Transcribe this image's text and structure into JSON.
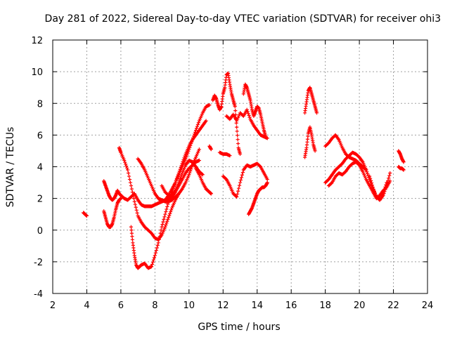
{
  "chart_data": {
    "type": "scatter",
    "title": "Day 281 of 2022, Sidereal Day-to-day VTEC variation (SDTVAR) for receiver ohi3",
    "xlabel": "GPS time / hours",
    "ylabel": "SDTVAR / TECUs",
    "xlim": [
      2,
      24
    ],
    "ylim": [
      -4,
      12
    ],
    "xticks": [
      2,
      4,
      6,
      8,
      10,
      12,
      14,
      16,
      18,
      20,
      22,
      24
    ],
    "yticks": [
      -4,
      -2,
      0,
      2,
      4,
      6,
      8,
      10,
      12
    ],
    "grid": true,
    "marker": "+",
    "color": "#ff0000",
    "series": [
      {
        "name": "s1",
        "x": [
          3.8,
          3.9,
          4.0
        ],
        "y": [
          1.1,
          1.0,
          0.9
        ]
      },
      {
        "name": "s2",
        "x": [
          5.0,
          5.1,
          5.2,
          5.3,
          5.4,
          5.5,
          5.6,
          5.7,
          5.8,
          5.9,
          6.0,
          6.2,
          6.4,
          6.6,
          6.8,
          7.0,
          7.2,
          7.4,
          7.6,
          7.8,
          8.0,
          8.2,
          8.4,
          8.6,
          8.8,
          9.0,
          9.2,
          9.4,
          9.6,
          9.8,
          10.0,
          10.2,
          10.4,
          10.6
        ],
        "y": [
          3.1,
          2.8,
          2.5,
          2.2,
          2.0,
          1.9,
          2.0,
          2.2,
          2.5,
          2.3,
          2.2,
          2.0,
          1.9,
          2.1,
          2.3,
          1.9,
          1.6,
          1.5,
          1.5,
          1.5,
          1.6,
          1.7,
          1.8,
          1.9,
          2.0,
          2.1,
          2.4,
          2.8,
          3.2,
          3.6,
          3.9,
          4.1,
          4.3,
          4.4
        ]
      },
      {
        "name": "s3",
        "x": [
          5.0,
          5.1,
          5.2,
          5.3,
          5.4,
          5.5,
          5.6,
          5.7,
          5.8,
          5.9,
          6.0
        ],
        "y": [
          1.2,
          0.8,
          0.4,
          0.2,
          0.2,
          0.4,
          0.8,
          1.3,
          1.7,
          1.9,
          2.0
        ]
      },
      {
        "name": "s4",
        "x": [
          5.9,
          6.0,
          6.2,
          6.4,
          6.6,
          6.8,
          7.0,
          7.2,
          7.4,
          7.6,
          7.8,
          8.0,
          8.2,
          8.4,
          8.6,
          8.8,
          9.0,
          9.2,
          9.4
        ],
        "y": [
          5.2,
          4.9,
          4.4,
          3.8,
          2.8,
          1.8,
          0.9,
          0.5,
          0.2,
          0.0,
          -0.2,
          -0.5,
          -0.6,
          -0.3,
          0.2,
          0.8,
          1.4,
          1.9,
          2.3
        ]
      },
      {
        "name": "s5",
        "x": [
          6.6,
          6.7,
          6.8,
          6.9,
          7.0,
          7.1,
          7.2,
          7.4,
          7.6,
          7.8,
          8.0,
          8.2,
          8.4,
          8.6,
          8.8,
          9.0,
          9.2,
          9.4,
          9.6,
          9.8,
          10.0,
          10.2,
          10.4,
          10.6,
          10.8,
          11.0
        ],
        "y": [
          0.2,
          -0.8,
          -1.6,
          -2.2,
          -2.4,
          -2.3,
          -2.2,
          -2.1,
          -2.4,
          -2.3,
          -1.6,
          -0.8,
          0.2,
          1.0,
          1.8,
          2.4,
          3.0,
          3.6,
          4.2,
          4.8,
          5.3,
          5.7,
          6.0,
          6.3,
          6.6,
          6.9
        ]
      },
      {
        "name": "s6",
        "x": [
          7.0,
          7.2,
          7.4,
          7.6,
          7.8,
          8.0,
          8.2,
          8.4,
          8.6,
          8.8,
          9.0,
          9.2,
          9.4,
          9.6,
          9.8,
          10.0,
          10.2,
          10.4,
          10.6,
          10.8,
          11.0,
          11.2
        ],
        "y": [
          4.5,
          4.2,
          3.8,
          3.3,
          2.8,
          2.3,
          2.0,
          1.8,
          1.9,
          2.2,
          2.6,
          3.0,
          3.5,
          4.0,
          4.5,
          5.1,
          5.7,
          6.3,
          6.9,
          7.4,
          7.8,
          7.9
        ]
      },
      {
        "name": "s7",
        "x": [
          8.2,
          8.4,
          8.6,
          8.8,
          9.0,
          9.2,
          9.4,
          9.6,
          9.8,
          10.0,
          10.2,
          10.4,
          10.6
        ],
        "y": [
          2.0,
          1.9,
          1.8,
          1.8,
          1.9,
          2.1,
          2.3,
          2.6,
          3.0,
          3.5,
          4.1,
          4.6,
          5.1
        ]
      },
      {
        "name": "s8",
        "x": [
          8.4,
          8.6,
          8.8,
          9.0,
          9.2,
          9.4,
          9.6,
          9.8,
          10.0,
          10.2,
          10.4,
          10.6,
          10.8
        ],
        "y": [
          2.8,
          2.4,
          2.2,
          2.2,
          2.5,
          3.0,
          3.6,
          4.1,
          4.4,
          4.3,
          4.0,
          3.7,
          3.5
        ]
      },
      {
        "name": "s9",
        "x": [
          10.4,
          10.6,
          10.8,
          11.0,
          11.2
        ],
        "y": [
          3.9,
          3.5,
          3.0,
          2.6,
          2.4
        ]
      },
      {
        "name": "s10",
        "x": [
          11.0,
          11.2,
          11.3
        ],
        "y": [
          2.6,
          2.4,
          2.3
        ]
      },
      {
        "name": "s11",
        "x": [
          11.2,
          11.3
        ],
        "y": [
          5.3,
          5.1
        ]
      },
      {
        "name": "s12",
        "x": [
          11.4,
          11.5,
          11.6,
          11.7,
          11.8,
          11.9,
          12.0,
          12.1,
          12.2,
          12.3,
          12.4,
          12.5,
          12.6,
          12.7,
          12.8,
          12.9,
          13.0
        ],
        "y": [
          8.2,
          8.5,
          8.3,
          7.9,
          7.6,
          7.8,
          8.6,
          9.0,
          9.8,
          9.9,
          9.2,
          8.6,
          8.2,
          7.8,
          6.5,
          5.2,
          4.8
        ]
      },
      {
        "name": "s13",
        "x": [
          11.8,
          12.0,
          12.2,
          12.4
        ],
        "y": [
          4.9,
          4.8,
          4.8,
          4.7
        ]
      },
      {
        "name": "s14",
        "x": [
          12.0,
          12.2,
          12.4,
          12.6,
          12.8,
          13.0,
          13.2,
          13.4,
          13.6,
          13.8,
          14.0,
          14.2,
          14.4,
          14.6
        ],
        "y": [
          3.4,
          3.2,
          2.8,
          2.3,
          2.1,
          3.0,
          3.8,
          4.1,
          4.0,
          4.1,
          4.2,
          4.0,
          3.6,
          3.2
        ]
      },
      {
        "name": "s15",
        "x": [
          12.2,
          12.4,
          12.6,
          12.8,
          13.0,
          13.2,
          13.4,
          13.6,
          13.8,
          14.0,
          14.2,
          14.4,
          14.6
        ],
        "y": [
          7.2,
          7.0,
          7.3,
          6.9,
          7.4,
          7.2,
          7.6,
          7.0,
          6.6,
          6.3,
          6.0,
          5.9,
          5.8
        ]
      },
      {
        "name": "s16",
        "x": [
          13.2,
          13.3,
          13.4,
          13.5,
          13.6,
          13.7,
          13.8,
          13.9,
          14.0,
          14.1,
          14.2,
          14.3,
          14.4,
          14.5
        ],
        "y": [
          8.6,
          9.2,
          9.0,
          8.6,
          8.2,
          7.6,
          7.2,
          7.5,
          7.8,
          7.7,
          7.3,
          6.8,
          6.3,
          5.9
        ]
      },
      {
        "name": "s17",
        "x": [
          13.5,
          13.6,
          13.7,
          13.8,
          13.9,
          14.0,
          14.1,
          14.2,
          14.3,
          14.4,
          14.5,
          14.6
        ],
        "y": [
          1.0,
          1.2,
          1.4,
          1.7,
          2.0,
          2.3,
          2.5,
          2.6,
          2.7,
          2.7,
          2.8,
          3.0
        ]
      },
      {
        "name": "s18",
        "x": [
          16.8,
          16.9,
          17.0,
          17.1,
          17.2,
          17.3,
          17.4,
          17.5
        ],
        "y": [
          7.4,
          8.1,
          8.8,
          9.0,
          8.6,
          8.2,
          7.8,
          7.4
        ]
      },
      {
        "name": "s19",
        "x": [
          16.8,
          16.9,
          17.0,
          17.1,
          17.2,
          17.3,
          17.4
        ],
        "y": [
          4.6,
          5.2,
          6.1,
          6.5,
          6.0,
          5.4,
          5.0
        ]
      },
      {
        "name": "s20",
        "x": [
          18.0,
          18.2,
          18.4,
          18.6,
          18.8,
          19.0,
          19.2,
          19.4,
          19.6,
          19.8,
          20.0,
          20.2,
          20.4
        ],
        "y": [
          5.3,
          5.5,
          5.8,
          6.0,
          5.7,
          5.2,
          4.8,
          4.6,
          4.5,
          4.4,
          4.2,
          4.0,
          3.8
        ]
      },
      {
        "name": "s21",
        "x": [
          18.0,
          18.2,
          18.4,
          18.6,
          18.8,
          19.0,
          19.2,
          19.4,
          19.6,
          19.8,
          20.0,
          20.2,
          20.4,
          20.6,
          20.8,
          21.0,
          21.2,
          21.4,
          21.6,
          21.8
        ],
        "y": [
          3.0,
          3.2,
          3.5,
          3.8,
          4.0,
          4.2,
          4.5,
          4.7,
          4.9,
          4.8,
          4.6,
          4.3,
          3.8,
          3.2,
          2.6,
          2.1,
          1.9,
          2.2,
          2.8,
          3.6
        ]
      },
      {
        "name": "s22",
        "x": [
          18.2,
          18.4,
          18.6,
          18.8,
          19.0,
          19.2,
          19.4,
          19.6,
          19.8,
          20.0,
          20.2,
          20.4,
          20.6,
          20.8,
          21.0,
          21.2,
          21.4,
          21.6,
          21.8
        ],
        "y": [
          2.8,
          3.0,
          3.4,
          3.6,
          3.5,
          3.7,
          4.0,
          4.2,
          4.3,
          4.1,
          3.7,
          3.2,
          2.8,
          2.4,
          2.0,
          2.2,
          2.5,
          2.7,
          3.1
        ]
      },
      {
        "name": "s23",
        "x": [
          20.6,
          20.8,
          21.0,
          21.2,
          21.4,
          21.6
        ],
        "y": [
          3.4,
          2.7,
          2.1,
          1.9,
          2.3,
          3.0
        ]
      },
      {
        "name": "s24",
        "x": [
          22.3,
          22.4,
          22.5,
          22.6
        ],
        "y": [
          5.0,
          4.8,
          4.5,
          4.3
        ]
      },
      {
        "name": "s25",
        "x": [
          22.3,
          22.4,
          22.5,
          22.6
        ],
        "y": [
          4.0,
          3.9,
          3.9,
          3.8
        ]
      }
    ]
  }
}
